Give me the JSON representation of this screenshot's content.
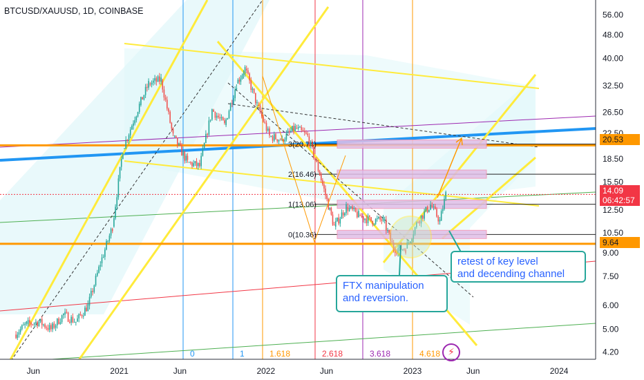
{
  "header": {
    "symbol": "BTCUSD/XAUUSD, 1D, COINBASE"
  },
  "price_tags": {
    "last_price": "14.09",
    "countdown": "06:42:57",
    "level_upper": "20.53",
    "level_lower": "9.64"
  },
  "annotations": {
    "ftx_line1": "FTX manipulation",
    "ftx_line2": "and reversion.",
    "retest_line1": "retest of key level",
    "retest_line2": "and decending channel"
  },
  "colors": {
    "accent_orange": "#ff9800",
    "accent_red": "#f23645",
    "channel_yellow": "#ffeb3b",
    "trend_blue": "#2196f3",
    "callout_border": "#26a69a",
    "callout_text": "#2962ff",
    "up_candle": "#26a69a",
    "down_candle": "#ef5350"
  },
  "chart_data": {
    "type": "candlestick",
    "title": "BTCUSD/XAUUSD, 1D, COINBASE",
    "y_scale": "log",
    "ylim": [
      4.1,
      57
    ],
    "y_ticks": [
      "56.00",
      "48.00",
      "40.00",
      "32.50",
      "26.50",
      "22.50",
      "18.50",
      "15.50",
      "12.50",
      "10.50",
      "9.00",
      "7.50",
      "6.00",
      "5.00",
      "4.20"
    ],
    "x_ticks": [
      "Jun",
      "2021",
      "Jun",
      "2022",
      "Jun",
      "2023",
      "Jun",
      "2024"
    ],
    "close_path": [
      {
        "date": "2020-04-15",
        "value": 4.8
      },
      {
        "date": "2020-05-15",
        "value": 5.2
      },
      {
        "date": "2020-06-15",
        "value": 5.3
      },
      {
        "date": "2020-07-15",
        "value": 5.0
      },
      {
        "date": "2020-08-15",
        "value": 5.6
      },
      {
        "date": "2020-09-15",
        "value": 5.3
      },
      {
        "date": "2020-10-15",
        "value": 6.0
      },
      {
        "date": "2020-11-15",
        "value": 8.3
      },
      {
        "date": "2020-12-15",
        "value": 11.0
      },
      {
        "date": "2021-01-10",
        "value": 20.0
      },
      {
        "date": "2021-02-20",
        "value": 28.0
      },
      {
        "date": "2021-03-15",
        "value": 33.0
      },
      {
        "date": "2021-04-15",
        "value": 34.0
      },
      {
        "date": "2021-05-15",
        "value": 22.0
      },
      {
        "date": "2021-06-20",
        "value": 18.0
      },
      {
        "date": "2021-07-20",
        "value": 17.5
      },
      {
        "date": "2021-08-20",
        "value": 27.0
      },
      {
        "date": "2021-09-20",
        "value": 24.0
      },
      {
        "date": "2021-10-20",
        "value": 33.0
      },
      {
        "date": "2021-11-10",
        "value": 37.0
      },
      {
        "date": "2021-12-10",
        "value": 28.0
      },
      {
        "date": "2022-01-10",
        "value": 22.0
      },
      {
        "date": "2022-02-10",
        "value": 21.5
      },
      {
        "date": "2022-03-15",
        "value": 23.5
      },
      {
        "date": "2022-04-15",
        "value": 22.0
      },
      {
        "date": "2022-05-15",
        "value": 16.5
      },
      {
        "date": "2022-06-20",
        "value": 11.0
      },
      {
        "date": "2022-07-20",
        "value": 12.8
      },
      {
        "date": "2022-08-20",
        "value": 12.0
      },
      {
        "date": "2022-09-20",
        "value": 11.5
      },
      {
        "date": "2022-10-20",
        "value": 11.6
      },
      {
        "date": "2022-11-15",
        "value": 9.3
      },
      {
        "date": "2022-12-15",
        "value": 9.3
      },
      {
        "date": "2023-01-15",
        "value": 11.5
      },
      {
        "date": "2023-02-15",
        "value": 13.0
      },
      {
        "date": "2023-03-10",
        "value": 11.5
      },
      {
        "date": "2023-03-25",
        "value": 14.09
      }
    ],
    "horizontal_levels": [
      {
        "value": 20.53,
        "label": "20.53",
        "color": "#ff9800"
      },
      {
        "value": 9.64,
        "label": "9.64",
        "color": "#ff9800"
      }
    ],
    "fib_levels": [
      {
        "label": "3(20.74)",
        "value": 20.74
      },
      {
        "label": "2(16.46)",
        "value": 16.46
      },
      {
        "label": "1(13.06)",
        "value": 13.06
      },
      {
        "label": "0(10.36)",
        "value": 10.36
      }
    ],
    "fib_time_labels": [
      {
        "label": "0",
        "color": "#2196f3"
      },
      {
        "label": "1",
        "color": "#2196f3"
      },
      {
        "label": "1.618",
        "color": "#ff9800"
      },
      {
        "label": "2.618",
        "color": "#f23645"
      },
      {
        "label": "3.618",
        "color": "#9c27b0"
      },
      {
        "label": "4.618",
        "color": "#ff9800"
      }
    ],
    "last_price": 14.09,
    "countdown": "06:42:57"
  }
}
